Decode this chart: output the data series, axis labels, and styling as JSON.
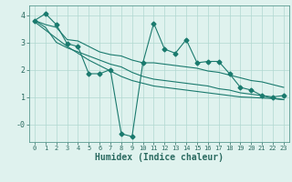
{
  "x": [
    0,
    1,
    2,
    3,
    4,
    5,
    6,
    7,
    8,
    9,
    10,
    11,
    12,
    13,
    14,
    15,
    16,
    17,
    18,
    19,
    20,
    21,
    22,
    23
  ],
  "y_main": [
    3.8,
    4.05,
    3.65,
    2.95,
    2.85,
    1.85,
    1.85,
    2.0,
    -0.35,
    -0.45,
    2.25,
    3.7,
    2.75,
    2.6,
    3.1,
    2.25,
    2.3,
    2.3,
    1.85,
    1.35,
    1.25,
    1.05,
    1.0,
    1.05
  ],
  "y_upper": [
    3.8,
    3.65,
    3.55,
    3.1,
    3.05,
    2.85,
    2.65,
    2.55,
    2.5,
    2.35,
    2.25,
    2.25,
    2.2,
    2.15,
    2.1,
    2.05,
    1.95,
    1.9,
    1.8,
    1.7,
    1.6,
    1.55,
    1.45,
    1.35
  ],
  "y_lower": [
    3.8,
    3.55,
    3.0,
    2.8,
    2.65,
    2.5,
    2.35,
    2.2,
    2.1,
    1.9,
    1.75,
    1.65,
    1.6,
    1.55,
    1.5,
    1.45,
    1.4,
    1.3,
    1.25,
    1.15,
    1.1,
    1.05,
    0.95,
    0.9
  ],
  "y_trend": [
    3.75,
    3.45,
    3.15,
    2.85,
    2.6,
    2.35,
    2.15,
    1.95,
    1.75,
    1.6,
    1.5,
    1.4,
    1.35,
    1.3,
    1.25,
    1.2,
    1.15,
    1.1,
    1.05,
    1.0,
    0.98,
    0.96,
    0.94,
    0.9
  ],
  "line_color": "#1a7a6e",
  "bg_color": "#dff2ee",
  "grid_color": "#b0d8d0",
  "xlabel": "Humidex (Indice chaleur)",
  "xlim": [
    -0.5,
    23.5
  ],
  "ylim": [
    -0.65,
    4.35
  ],
  "xticks": [
    0,
    1,
    2,
    3,
    4,
    5,
    6,
    7,
    8,
    9,
    10,
    11,
    12,
    13,
    14,
    15,
    16,
    17,
    18,
    19,
    20,
    21,
    22,
    23
  ],
  "yticks": [
    0,
    1,
    2,
    3,
    4
  ],
  "ytick_labels": [
    "-0",
    "1",
    "2",
    "3",
    "4"
  ]
}
